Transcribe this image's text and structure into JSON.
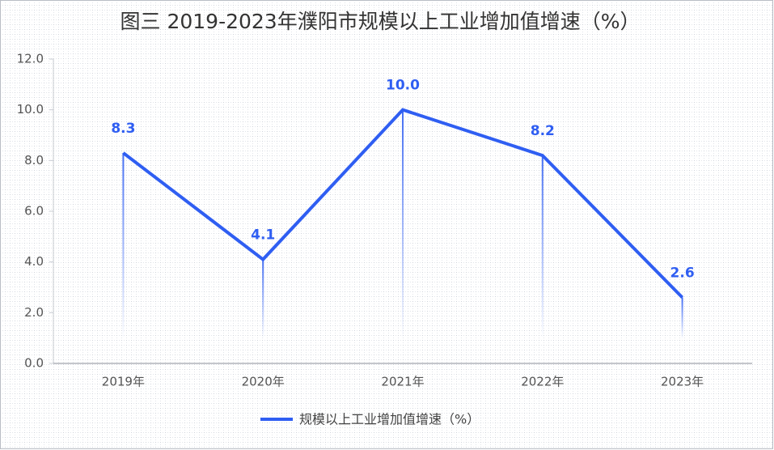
{
  "chart_data": {
    "type": "line",
    "title": "图三  2019-2023年濮阳市规模以上工业增加值增速（%）",
    "categories": [
      "2019年",
      "2020年",
      "2021年",
      "2022年",
      "2023年"
    ],
    "series": [
      {
        "name": "规模以上工业增加值增速（%）",
        "color": "#2f5ef2",
        "values": [
          8.3,
          4.1,
          10.0,
          8.2,
          2.6
        ],
        "value_labels": [
          "8.3",
          "4.1",
          "10.0",
          "8.2",
          "2.6"
        ]
      }
    ],
    "ylim": [
      0,
      12
    ],
    "yticks": [
      {
        "value": 0,
        "label": "0.0"
      },
      {
        "value": 2,
        "label": "2.0"
      },
      {
        "value": 4,
        "label": "4.0"
      },
      {
        "value": 6,
        "label": "6.0"
      },
      {
        "value": 8,
        "label": "8.0"
      },
      {
        "value": 10,
        "label": "10.0"
      },
      {
        "value": 12,
        "label": "12.0"
      }
    ],
    "grid": false,
    "legend": "bottom"
  }
}
